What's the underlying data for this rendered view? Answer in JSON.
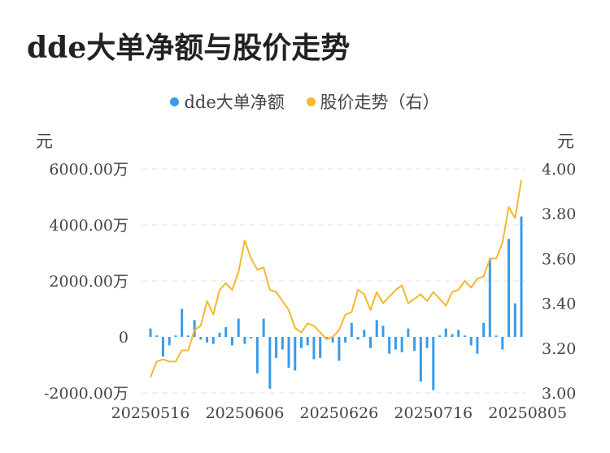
{
  "title": "dde大单净额与股价走势",
  "legend": [
    {
      "name": "dde大单净额",
      "color": "#3a9be8"
    },
    {
      "name": "股价走势（右）",
      "color": "#f5b82e"
    }
  ],
  "left_unit": "元",
  "right_unit": "元",
  "chart_data": {
    "type": "bar+line",
    "title": "dde大单净额与股价走势",
    "left_axis": {
      "unit": "元",
      "ticks": [
        "6000.00万",
        "4000.00万",
        "2000.00万",
        "0",
        "-2000.00万"
      ],
      "values": [
        6000,
        4000,
        2000,
        0,
        -2000
      ],
      "range": [
        -2000,
        6000
      ]
    },
    "right_axis": {
      "unit": "元",
      "ticks": [
        "4.00",
        "3.80",
        "3.60",
        "3.40",
        "3.20",
        "3.00"
      ],
      "values": [
        4.0,
        3.8,
        3.6,
        3.4,
        3.2,
        3.0
      ],
      "range": [
        3.0,
        4.0
      ]
    },
    "x_tick_labels": [
      "20250516",
      "20250606",
      "20250626",
      "20250716",
      "20250805"
    ],
    "x_tick_indices": [
      0,
      15,
      30,
      45,
      60
    ],
    "grid": true,
    "legend_position": "top-center",
    "series": [
      {
        "name": "dde大单净额",
        "type": "bar",
        "axis": "left",
        "color": "#3a9be8",
        "values": [
          300,
          50,
          -700,
          -300,
          50,
          1000,
          50,
          600,
          -100,
          -200,
          -250,
          150,
          350,
          -300,
          650,
          -250,
          -50,
          -1300,
          650,
          -1850,
          -750,
          -450,
          -1100,
          -1200,
          -400,
          -300,
          -800,
          -750,
          -50,
          -200,
          -850,
          -200,
          500,
          -100,
          250,
          -400,
          600,
          400,
          -600,
          -450,
          -550,
          300,
          -500,
          -1600,
          -400,
          -1900,
          50,
          300,
          100,
          250,
          50,
          -300,
          -600,
          500,
          2800,
          50,
          -450,
          3500,
          1200,
          4300
        ]
      },
      {
        "name": "股价走势（右）",
        "type": "line",
        "axis": "right",
        "color": "#f5b82e",
        "values": [
          3.07,
          3.14,
          3.15,
          3.14,
          3.14,
          3.19,
          3.19,
          3.28,
          3.3,
          3.41,
          3.35,
          3.46,
          3.49,
          3.46,
          3.54,
          3.68,
          3.6,
          3.55,
          3.56,
          3.46,
          3.45,
          3.41,
          3.37,
          3.29,
          3.27,
          3.31,
          3.3,
          3.27,
          3.24,
          3.25,
          3.28,
          3.35,
          3.36,
          3.46,
          3.44,
          3.37,
          3.45,
          3.4,
          3.43,
          3.46,
          3.48,
          3.4,
          3.42,
          3.44,
          3.41,
          3.45,
          3.42,
          3.39,
          3.45,
          3.46,
          3.5,
          3.47,
          3.51,
          3.52,
          3.6,
          3.6,
          3.67,
          3.83,
          3.78,
          3.95
        ]
      }
    ]
  }
}
